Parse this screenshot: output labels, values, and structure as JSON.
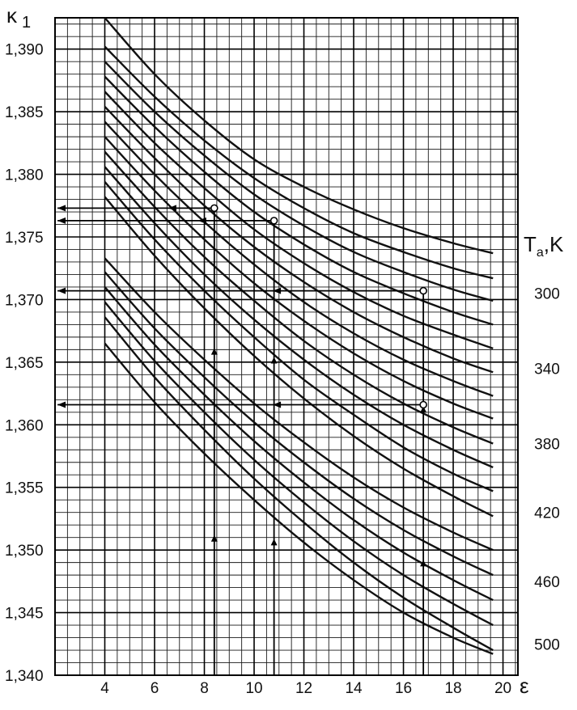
{
  "chart_data": {
    "type": "line",
    "xlabel": "ε",
    "ylabel": "κ",
    "ylabel_sub": "1",
    "right_label": "T",
    "right_label_sub": "a",
    "right_label_unit": ",K",
    "xlim": [
      2,
      20.6
    ],
    "ylim": [
      1.34,
      1.3925
    ],
    "x_ticks": [
      "4",
      "6",
      "8",
      "10",
      "12",
      "14",
      "16",
      "18",
      "20"
    ],
    "y_ticks": [
      "1,340",
      "1,345",
      "1,350",
      "1,355",
      "1,360",
      "1,365",
      "1,370",
      "1,375",
      "1,380",
      "1,385",
      "1,390"
    ],
    "right_ticks": [
      {
        "label": "300",
        "y": 1.3705
      },
      {
        "label": "340",
        "y": 1.3645
      },
      {
        "label": "380",
        "y": 1.3585
      },
      {
        "label": "420",
        "y": 1.353
      },
      {
        "label": "460",
        "y": 1.3475
      },
      {
        "label": "500",
        "y": 1.3425
      }
    ],
    "grid": true,
    "minor_grid": {
      "x_step": 0.5,
      "y_step": 0.001
    },
    "series_style": {
      "color": "#111111"
    },
    "series": [
      {
        "x": [
          4,
          6,
          8,
          10,
          12,
          14,
          16,
          18,
          19.6
        ],
        "values": [
          1.3925,
          1.388,
          1.3843,
          1.3812,
          1.379,
          1.3772,
          1.3757,
          1.3745,
          1.3737
        ]
      },
      {
        "x": [
          4,
          6,
          8,
          10,
          12,
          14,
          16,
          18,
          19.6
        ],
        "values": [
          1.3902,
          1.3862,
          1.3827,
          1.3797,
          1.3773,
          1.3753,
          1.3738,
          1.3725,
          1.3717
        ]
      },
      {
        "x": [
          4,
          6,
          8,
          10,
          12,
          14,
          16,
          18,
          19.6
        ],
        "values": [
          1.389,
          1.385,
          1.3815,
          1.3784,
          1.3759,
          1.3738,
          1.3722,
          1.3708,
          1.3699
        ]
      },
      {
        "x": [
          4,
          6,
          8,
          10,
          12,
          14,
          16,
          18,
          19.6
        ],
        "values": [
          1.3878,
          1.3838,
          1.3802,
          1.377,
          1.3744,
          1.3722,
          1.3705,
          1.369,
          1.368
        ]
      },
      {
        "x": [
          4,
          6,
          8,
          10,
          12,
          14,
          16,
          18,
          19.6
        ],
        "values": [
          1.3866,
          1.3825,
          1.3789,
          1.3756,
          1.3729,
          1.3706,
          1.3687,
          1.3672,
          1.3661
        ]
      },
      {
        "x": [
          4,
          6,
          8,
          10,
          12,
          14,
          16,
          18,
          19.6
        ],
        "values": [
          1.3854,
          1.3813,
          1.3775,
          1.3742,
          1.3714,
          1.369,
          1.367,
          1.3653,
          1.3642
        ]
      },
      {
        "x": [
          4,
          6,
          8,
          10,
          12,
          14,
          16,
          18,
          19.6
        ],
        "values": [
          1.3842,
          1.38,
          1.3762,
          1.3728,
          1.3698,
          1.3673,
          1.3652,
          1.3635,
          1.3623
        ]
      },
      {
        "x": [
          4,
          6,
          8,
          10,
          12,
          14,
          16,
          18,
          19.6
        ],
        "values": [
          1.383,
          1.3787,
          1.3748,
          1.3713,
          1.3683,
          1.3657,
          1.3635,
          1.3617,
          1.3605
        ]
      },
      {
        "x": [
          4,
          6,
          8,
          10,
          12,
          14,
          16,
          18,
          19.6
        ],
        "values": [
          1.3818,
          1.3774,
          1.3734,
          1.3699,
          1.3667,
          1.364,
          1.3617,
          1.3598,
          1.3585
        ]
      },
      {
        "x": [
          4,
          6,
          8,
          10,
          12,
          14,
          16,
          18,
          19.6
        ],
        "values": [
          1.3806,
          1.3761,
          1.372,
          1.3684,
          1.3652,
          1.3624,
          1.36,
          1.358,
          1.3566
        ]
      },
      {
        "x": [
          4,
          6,
          8,
          10,
          12,
          14,
          16,
          18,
          19.6
        ],
        "values": [
          1.3794,
          1.3748,
          1.3707,
          1.367,
          1.3636,
          1.3608,
          1.3582,
          1.3561,
          1.3547
        ]
      },
      {
        "x": [
          4,
          6,
          8,
          10,
          12,
          14,
          16,
          18,
          19.6
        ],
        "values": [
          1.3782,
          1.3735,
          1.3693,
          1.3655,
          1.3621,
          1.3591,
          1.3565,
          1.3543,
          1.3527
        ]
      },
      {
        "x": [
          4,
          6,
          8,
          10,
          12,
          14,
          16,
          18,
          19.6
        ],
        "values": [
          1.3733,
          1.369,
          1.3652,
          1.3617,
          1.3586,
          1.3558,
          1.3534,
          1.3514,
          1.35
        ]
      },
      {
        "x": [
          4,
          6,
          8,
          10,
          12,
          14,
          16,
          18,
          19.6
        ],
        "values": [
          1.3722,
          1.3677,
          1.3638,
          1.3602,
          1.357,
          1.3541,
          1.3516,
          1.3495,
          1.348
        ]
      },
      {
        "x": [
          4,
          6,
          8,
          10,
          12,
          14,
          16,
          18,
          19.6
        ],
        "values": [
          1.371,
          1.3664,
          1.3624,
          1.3587,
          1.3554,
          1.3524,
          1.3498,
          1.3476,
          1.346
        ]
      },
      {
        "x": [
          4,
          6,
          8,
          10,
          12,
          14,
          16,
          18,
          19.6
        ],
        "values": [
          1.3698,
          1.3651,
          1.361,
          1.3572,
          1.3538,
          1.3507,
          1.348,
          1.3457,
          1.344
        ]
      },
      {
        "x": [
          4,
          6,
          8,
          10,
          12,
          14,
          16,
          18,
          19.6
        ],
        "values": [
          1.3686,
          1.3638,
          1.3596,
          1.3557,
          1.3522,
          1.349,
          1.3462,
          1.3438,
          1.342
        ]
      },
      {
        "x": [
          4,
          6,
          8,
          10,
          12,
          14,
          16,
          18,
          19.6
        ],
        "values": [
          1.3665,
          1.3618,
          1.3577,
          1.354,
          1.3506,
          1.3476,
          1.345,
          1.343,
          1.3417
        ]
      }
    ],
    "annotations": {
      "horizontal_arrows": [
        {
          "y": 1.3773,
          "x_from": 8.4,
          "x_to": 2.1
        },
        {
          "y": 1.3763,
          "x_from": 10.8,
          "x_to": 2.1
        },
        {
          "y": 1.3707,
          "x_from": 16.8,
          "x_to": 2.1
        },
        {
          "y": 1.3616,
          "x_from": 16.8,
          "x_to": 2.1
        }
      ],
      "vertical_lines": [
        {
          "x": 8.4,
          "y_from": 1.34,
          "y_to": 1.3773
        },
        {
          "x": 10.8,
          "y_from": 1.34,
          "y_to": 1.3763
        },
        {
          "x": 16.8,
          "y_from": 1.34,
          "y_to": 1.3707
        }
      ],
      "open_points": [
        {
          "x": 8.4,
          "y": 1.3773
        },
        {
          "x": 10.8,
          "y": 1.3763
        },
        {
          "x": 16.8,
          "y": 1.3707
        },
        {
          "x": 16.8,
          "y": 1.3616
        }
      ]
    }
  }
}
